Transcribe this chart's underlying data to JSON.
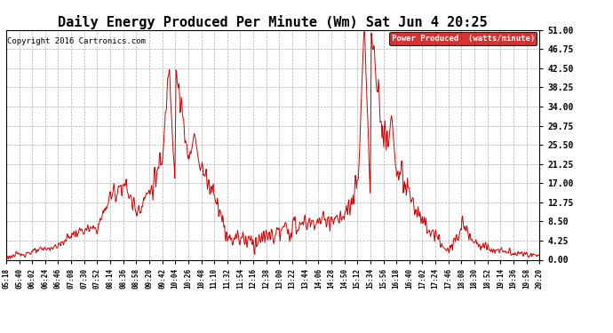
{
  "title": "Daily Energy Produced Per Minute (Wm) Sat Jun 4 20:25",
  "copyright": "Copyright 2016 Cartronics.com",
  "legend_label": "Power Produced  (watts/minute)",
  "legend_bg": "#cc0000",
  "legend_fg": "#ffffff",
  "line_color": "#cc0000",
  "bg_color": "#ffffff",
  "grid_color": "#999999",
  "yticks": [
    0.0,
    4.25,
    8.5,
    12.75,
    17.0,
    21.25,
    25.5,
    29.75,
    34.0,
    38.25,
    42.5,
    46.75,
    51.0
  ],
  "ylim": [
    0.0,
    51.0
  ],
  "xtick_labels": [
    "05:18",
    "05:40",
    "06:02",
    "06:24",
    "06:46",
    "07:08",
    "07:30",
    "07:52",
    "08:14",
    "08:36",
    "08:58",
    "09:20",
    "09:42",
    "10:04",
    "10:26",
    "10:48",
    "11:10",
    "11:32",
    "11:54",
    "12:16",
    "12:38",
    "13:00",
    "13:22",
    "13:44",
    "14:06",
    "14:28",
    "14:50",
    "15:12",
    "15:34",
    "15:56",
    "16:18",
    "16:40",
    "17:02",
    "17:24",
    "17:46",
    "18:08",
    "18:30",
    "18:52",
    "19:14",
    "19:36",
    "19:58",
    "20:20"
  ],
  "title_fontsize": 11,
  "copyright_fontsize": 6.5,
  "tick_fontsize": 7,
  "xtick_fontsize": 5.5
}
